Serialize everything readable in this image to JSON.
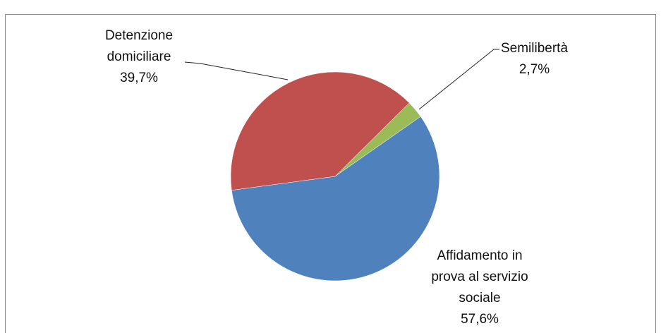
{
  "chart_data": {
    "type": "pie",
    "categories": [
      "Affidamento in prova al servizio sociale",
      "Detenzione domiciliare",
      "Semilibertà"
    ],
    "values": [
      57.6,
      39.7,
      2.7
    ],
    "value_labels": [
      "57,6%",
      "39,7%",
      "2,7%"
    ],
    "colors": [
      "#4f81bd",
      "#c0504d",
      "#9bbb59"
    ]
  }
}
